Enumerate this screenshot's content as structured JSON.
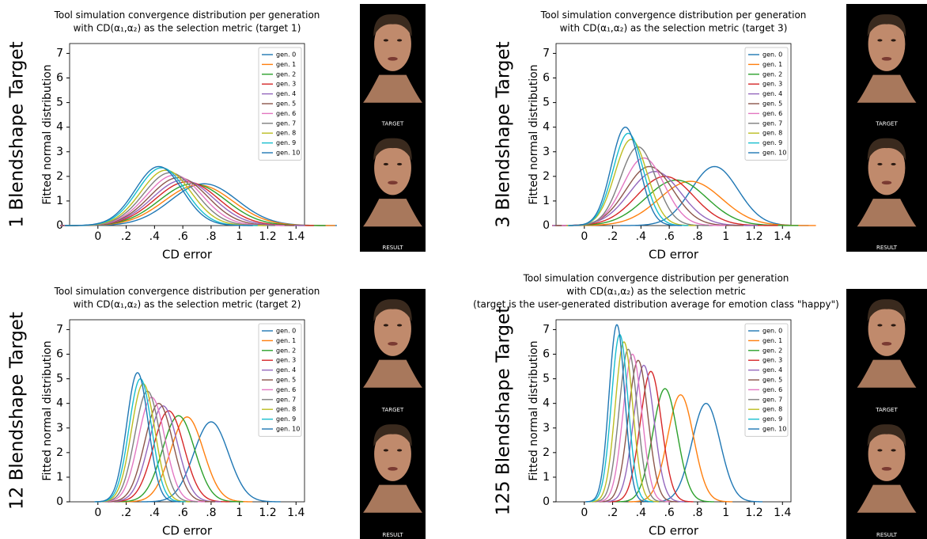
{
  "chart_data": [
    {
      "type": "density",
      "row_label": "1 Blendshape Target",
      "title": [
        "Tool simulation convergence distribution per generation",
        "with CD(α₁,α₂) as the selection metric (target 1)"
      ],
      "x_label": "CD error",
      "y_label": "Fitted normal distribution",
      "xlim": [
        -0.2,
        1.46
      ],
      "ylim": [
        0,
        7.4
      ],
      "xticks": [
        0,
        {
          "value": 0.2,
          "label": ".2"
        },
        {
          "value": 0.4,
          "label": ".4"
        },
        {
          "value": 0.6,
          "label": ".6"
        },
        {
          "value": 0.8,
          "label": ".8"
        },
        1,
        1.2,
        1.4
      ],
      "yticks": [
        0,
        1,
        2,
        3,
        4,
        5,
        6,
        7
      ],
      "legend": "upper right",
      "panels": [
        "TARGET",
        "RESULT"
      ],
      "series": [
        {
          "name": "gen. 0",
          "color": "#1f77b4",
          "mean": 0.75,
          "peak": 1.7
        },
        {
          "name": "gen. 1",
          "color": "#ff7f0e",
          "mean": 0.71,
          "peak": 1.65
        },
        {
          "name": "gen. 2",
          "color": "#2ca02c",
          "mean": 0.67,
          "peak": 1.7
        },
        {
          "name": "gen. 3",
          "color": "#d62728",
          "mean": 0.63,
          "peak": 1.78
        },
        {
          "name": "gen. 4",
          "color": "#9467bd",
          "mean": 0.6,
          "peak": 1.85
        },
        {
          "name": "gen. 5",
          "color": "#8c564b",
          "mean": 0.57,
          "peak": 1.95
        },
        {
          "name": "gen. 6",
          "color": "#e377c2",
          "mean": 0.54,
          "peak": 2.05
        },
        {
          "name": "gen. 7",
          "color": "#7f7f7f",
          "mean": 0.51,
          "peak": 2.15
        },
        {
          "name": "gen. 8",
          "color": "#bcbd22",
          "mean": 0.48,
          "peak": 2.25
        },
        {
          "name": "gen. 9",
          "color": "#17becf",
          "mean": 0.45,
          "peak": 2.35
        },
        {
          "name": "gen. 10",
          "color": "#1f77b4",
          "mean": 0.43,
          "peak": 2.4
        }
      ]
    },
    {
      "type": "density",
      "row_label": "3 Blendshape Target",
      "title": [
        "Tool simulation convergence distribution per generation",
        "with CD(α₁,α₂) as the selection metric (target 3)"
      ],
      "x_label": "CD error",
      "y_label": "Fitted normal distribution",
      "xlim": [
        -0.2,
        1.46
      ],
      "ylim": [
        0,
        7.4
      ],
      "xticks": [
        0,
        {
          "value": 0.2,
          "label": ".2"
        },
        {
          "value": 0.4,
          "label": ".4"
        },
        {
          "value": 0.6,
          "label": ".6"
        },
        {
          "value": 0.8,
          "label": ".8"
        },
        1,
        1.2,
        1.4
      ],
      "yticks": [
        0,
        1,
        2,
        3,
        4,
        5,
        6,
        7
      ],
      "legend": "upper right",
      "panels": [
        "TARGET",
        "RESULT"
      ],
      "series": [
        {
          "name": "gen. 0",
          "color": "#1f77b4",
          "mean": 0.92,
          "peak": 2.4
        },
        {
          "name": "gen. 1",
          "color": "#ff7f0e",
          "mean": 0.75,
          "peak": 1.8
        },
        {
          "name": "gen. 2",
          "color": "#2ca02c",
          "mean": 0.65,
          "peak": 1.85
        },
        {
          "name": "gen. 3",
          "color": "#d62728",
          "mean": 0.57,
          "peak": 2.0
        },
        {
          "name": "gen. 4",
          "color": "#9467bd",
          "mean": 0.5,
          "peak": 2.2
        },
        {
          "name": "gen. 5",
          "color": "#8c564b",
          "mean": 0.46,
          "peak": 2.4
        },
        {
          "name": "gen. 6",
          "color": "#e377c2",
          "mean": 0.42,
          "peak": 2.75
        },
        {
          "name": "gen. 7",
          "color": "#7f7f7f",
          "mean": 0.38,
          "peak": 3.2
        },
        {
          "name": "gen. 8",
          "color": "#bcbd22",
          "mean": 0.33,
          "peak": 3.5
        },
        {
          "name": "gen. 9",
          "color": "#17becf",
          "mean": 0.31,
          "peak": 3.75
        },
        {
          "name": "gen. 10",
          "color": "#1f77b4",
          "mean": 0.29,
          "peak": 4.0
        }
      ]
    },
    {
      "type": "density",
      "row_label": "12 Blendshape Target",
      "title": [
        "Tool simulation convergence distribution per generation",
        "with CD(α₁,α₂) as the selection metric (target 2)"
      ],
      "x_label": "CD error",
      "y_label": "Fitted normal distribution",
      "xlim": [
        -0.2,
        1.46
      ],
      "ylim": [
        0,
        7.4
      ],
      "xticks": [
        0,
        {
          "value": 0.2,
          "label": ".2"
        },
        {
          "value": 0.4,
          "label": ".4"
        },
        {
          "value": 0.6,
          "label": ".6"
        },
        {
          "value": 0.8,
          "label": ".8"
        },
        1,
        1.2,
        1.4
      ],
      "yticks": [
        0,
        1,
        2,
        3,
        4,
        5,
        6,
        7
      ],
      "legend": "upper right",
      "panels": [
        "TARGET",
        "RESULT"
      ],
      "series": [
        {
          "name": "gen. 0",
          "color": "#1f77b4",
          "mean": 0.8,
          "peak": 3.25
        },
        {
          "name": "gen. 1",
          "color": "#ff7f0e",
          "mean": 0.63,
          "peak": 3.45
        },
        {
          "name": "gen. 2",
          "color": "#2ca02c",
          "mean": 0.57,
          "peak": 3.5
        },
        {
          "name": "gen. 3",
          "color": "#d62728",
          "mean": 0.5,
          "peak": 3.7
        },
        {
          "name": "gen. 4",
          "color": "#9467bd",
          "mean": 0.46,
          "peak": 3.9
        },
        {
          "name": "gen. 5",
          "color": "#8c564b",
          "mean": 0.43,
          "peak": 4.0
        },
        {
          "name": "gen. 6",
          "color": "#e377c2",
          "mean": 0.38,
          "peak": 4.25
        },
        {
          "name": "gen. 7",
          "color": "#7f7f7f",
          "mean": 0.35,
          "peak": 4.5
        },
        {
          "name": "gen. 8",
          "color": "#bcbd22",
          "mean": 0.32,
          "peak": 4.8
        },
        {
          "name": "gen. 9",
          "color": "#17becf",
          "mean": 0.3,
          "peak": 5.0
        },
        {
          "name": "gen. 10",
          "color": "#1f77b4",
          "mean": 0.28,
          "peak": 5.25
        }
      ]
    },
    {
      "type": "density",
      "row_label": "125 Blendshape Target",
      "title": [
        "Tool simulation convergence distribution per generation",
        "with CD(α₁,α₂) as the selection metric",
        "(target is the user-generated distribution average for emotion class \"happy\")"
      ],
      "x_label": "CD error",
      "y_label": "Fitted normal distribution",
      "xlim": [
        -0.2,
        1.46
      ],
      "ylim": [
        0,
        7.4
      ],
      "xticks": [
        0,
        {
          "value": 0.2,
          "label": ".2"
        },
        {
          "value": 0.4,
          "label": ".4"
        },
        {
          "value": 0.6,
          "label": ".6"
        },
        {
          "value": 0.8,
          "label": ".8"
        },
        1,
        1.2,
        1.4
      ],
      "yticks": [
        0,
        1,
        2,
        3,
        4,
        5,
        6,
        7
      ],
      "legend": "upper right",
      "panels": [
        "TARGET",
        "RESULT"
      ],
      "series": [
        {
          "name": "gen. 0",
          "color": "#1f77b4",
          "mean": 0.86,
          "peak": 4.0
        },
        {
          "name": "gen. 1",
          "color": "#ff7f0e",
          "mean": 0.68,
          "peak": 4.35
        },
        {
          "name": "gen. 2",
          "color": "#2ca02c",
          "mean": 0.57,
          "peak": 4.6
        },
        {
          "name": "gen. 3",
          "color": "#d62728",
          "mean": 0.47,
          "peak": 5.3
        },
        {
          "name": "gen. 4",
          "color": "#9467bd",
          "mean": 0.42,
          "peak": 5.55
        },
        {
          "name": "gen. 5",
          "color": "#8c564b",
          "mean": 0.38,
          "peak": 5.75
        },
        {
          "name": "gen. 6",
          "color": "#e377c2",
          "mean": 0.34,
          "peak": 6.0
        },
        {
          "name": "gen. 7",
          "color": "#7f7f7f",
          "mean": 0.31,
          "peak": 6.2
        },
        {
          "name": "gen. 8",
          "color": "#bcbd22",
          "mean": 0.28,
          "peak": 6.5
        },
        {
          "name": "gen. 9",
          "color": "#17becf",
          "mean": 0.25,
          "peak": 6.8
        },
        {
          "name": "gen. 10",
          "color": "#1f77b4",
          "mean": 0.23,
          "peak": 7.2
        }
      ]
    }
  ]
}
